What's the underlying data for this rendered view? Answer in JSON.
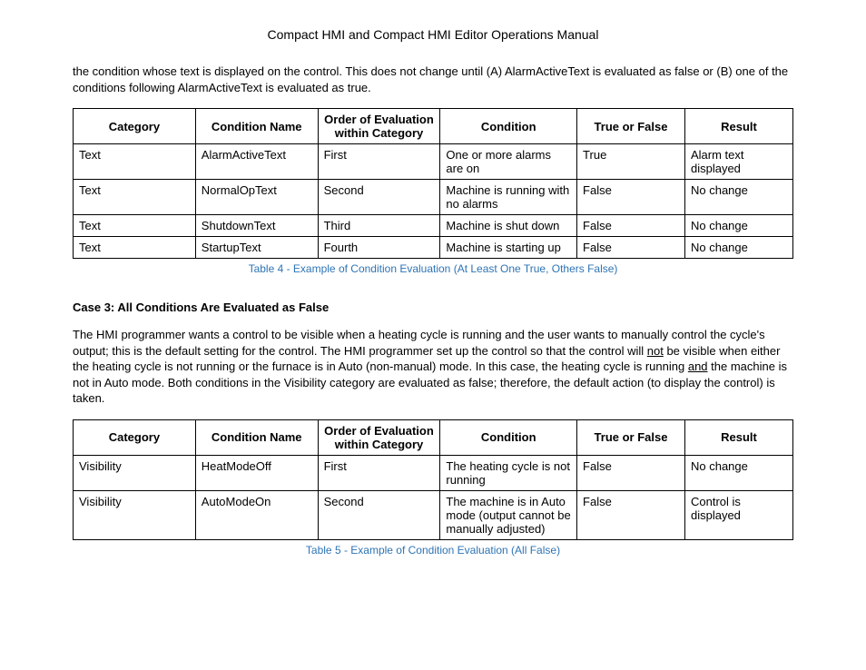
{
  "doc_title": "Compact HMI and Compact HMI Editor Operations Manual",
  "intro_paragraph": {
    "pre": "the condition whose text is displayed on the control. This does not change until (A) AlarmActiveText is evaluated as false or (B) one of the conditions following AlarmActiveText is evaluated as true."
  },
  "table1": {
    "headers": [
      "Category",
      "Condition Name",
      "Order of Evaluation within Category",
      "Condition",
      "True or False",
      "Result"
    ],
    "rows": [
      [
        "Text",
        "AlarmActiveText",
        "First",
        "One or more alarms are on",
        "True",
        "Alarm text displayed"
      ],
      [
        "Text",
        "NormalOpText",
        "Second",
        "Machine is running with no alarms",
        "False",
        "No change"
      ],
      [
        "Text",
        "ShutdownText",
        "Third",
        "Machine is shut down",
        "False",
        "No change"
      ],
      [
        "Text",
        "StartupText",
        "Fourth",
        "Machine is starting up",
        "False",
        "No change"
      ]
    ],
    "caption": "Table 4 - Example of Condition Evaluation (At Least One True, Others False)"
  },
  "case3": {
    "heading": "Case 3: All Conditions Are Evaluated as False",
    "p_a": "The HMI programmer wants a control to be visible when a heating cycle is running and the user wants to manually control the cycle's output; this is the default setting for the control. The HMI programmer set up the control so that the control will ",
    "p_not": "not",
    "p_b": " be visible when either the heating cycle is not running or the furnace is in Auto (non-manual) mode. In this case, the heating cycle is running ",
    "p_and": "and",
    "p_c": " the machine is not in Auto mode. Both conditions in the Visibility category are evaluated as false; therefore, the default action (to display the control) is taken."
  },
  "table2": {
    "headers": [
      "Category",
      "Condition Name",
      "Order of Evaluation within Category",
      "Condition",
      "True or False",
      "Result"
    ],
    "rows": [
      [
        "Visibility",
        "HeatModeOff",
        "First",
        "The heating cycle is not running",
        "False",
        "No change"
      ],
      [
        "Visibility",
        "AutoModeOn",
        "Second",
        "The machine is in Auto mode (output cannot be manually adjusted)",
        "False",
        "Control is displayed"
      ]
    ],
    "caption": "Table 5 - Example of Condition Evaluation (All False)"
  }
}
